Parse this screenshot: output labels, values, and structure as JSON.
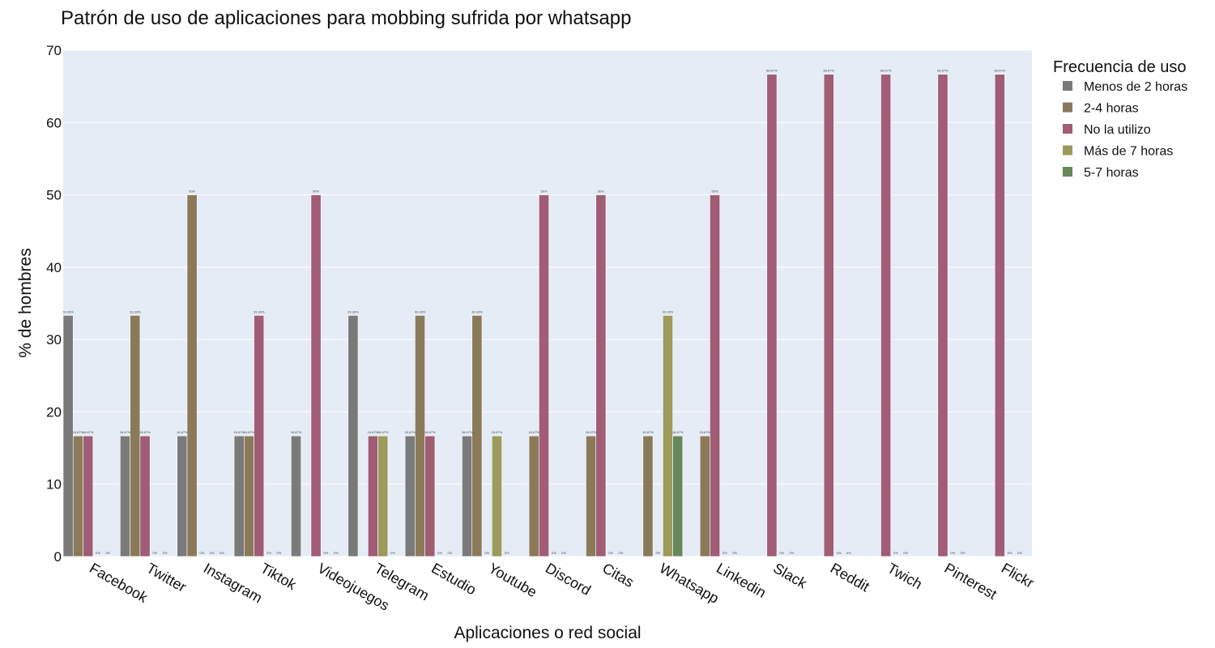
{
  "chart_data": {
    "type": "bar",
    "title": "Patrón de uso de aplicaciones para mobbing sufrida por whatsapp",
    "xlabel": "Aplicaciones o red social",
    "ylabel": "% de hombres",
    "ylim": [
      0,
      70
    ],
    "yticks": [
      0,
      10,
      20,
      30,
      40,
      50,
      60,
      70
    ],
    "grid": true,
    "legend_title": "Frecuencia de uso",
    "legend_position": "right",
    "categories": [
      "Facebook",
      "Twitter",
      "Instagram",
      "Tiktok",
      "Videojuegos",
      "Telegram",
      "Estudio",
      "Youtube",
      "Discord",
      "Citas",
      "Whatsapp",
      "Linkedin",
      "Slack",
      "Reddit",
      "Twich",
      "Pinterest",
      "Flickr"
    ],
    "series": [
      {
        "name": "Menos de 2 horas",
        "color": "#7a7a7a",
        "values": [
          33.33,
          16.67,
          16.67,
          16.67,
          16.67,
          33.33,
          16.67,
          16.67,
          null,
          null,
          null,
          null,
          null,
          null,
          null,
          null,
          null
        ],
        "labels": [
          "33.33%",
          "16.67%",
          "16.67%",
          "16.67%",
          "16.67%",
          "33.33%",
          "16.67%",
          "16.67%",
          "",
          "",
          "",
          "",
          "",
          "",
          "",
          "",
          ""
        ]
      },
      {
        "name": "2-4 horas",
        "color": "#8b7a5a",
        "values": [
          16.67,
          33.33,
          50,
          16.67,
          null,
          null,
          33.33,
          33.33,
          16.67,
          16.67,
          16.67,
          16.67,
          null,
          null,
          null,
          null,
          null
        ],
        "labels": [
          "16.67%",
          "33.33%",
          "50%",
          "16.67%",
          "",
          "",
          "33.33%",
          "33.33%",
          "16.67%",
          "16.67%",
          "16.67%",
          "16.67%",
          "",
          "",
          "",
          "",
          ""
        ]
      },
      {
        "name": "No la utilizo",
        "color": "#a05d75",
        "values": [
          16.67,
          16.67,
          0,
          33.33,
          50,
          16.67,
          16.67,
          0,
          50,
          50,
          0,
          50,
          66.67,
          66.67,
          66.67,
          66.67,
          66.67
        ],
        "labels": [
          "16.67%",
          "16.67%",
          "0%",
          "33.33%",
          "50%",
          "16.67%",
          "16.67%",
          "0%",
          "50%",
          "50%",
          "0%",
          "50%",
          "66.67%",
          "66.67%",
          "66.67%",
          "66.67%",
          "66.67%"
        ]
      },
      {
        "name": "Más de 7 horas",
        "color": "#9c9a5c",
        "values": [
          0,
          0,
          0,
          0,
          0,
          16.67,
          0,
          16.67,
          0,
          0,
          33.33,
          0,
          0,
          0,
          0,
          0,
          0
        ],
        "labels": [
          "0%",
          "0%",
          "0%",
          "0%",
          "0%",
          "16.67%",
          "0%",
          "16.67%",
          "0%",
          "0%",
          "33.33%",
          "0%",
          "0%",
          "0%",
          "0%",
          "0%",
          "0%"
        ]
      },
      {
        "name": "5-7 horas",
        "color": "#66875a",
        "values": [
          0,
          0,
          0,
          0,
          0,
          0,
          0,
          0,
          0,
          0,
          16.67,
          0,
          0,
          0,
          0,
          0,
          0
        ],
        "labels": [
          "0%",
          "0%",
          "0%",
          "0%",
          "0%",
          "0%",
          "0%",
          "0%",
          "0%",
          "0%",
          "16.67%",
          "0%",
          "0%",
          "0%",
          "0%",
          "0%",
          "0%"
        ]
      }
    ]
  },
  "colors": {
    "plot_background": "#e5ecf6",
    "gridline": "#ffffff",
    "bar_outline": "#ffffff"
  }
}
